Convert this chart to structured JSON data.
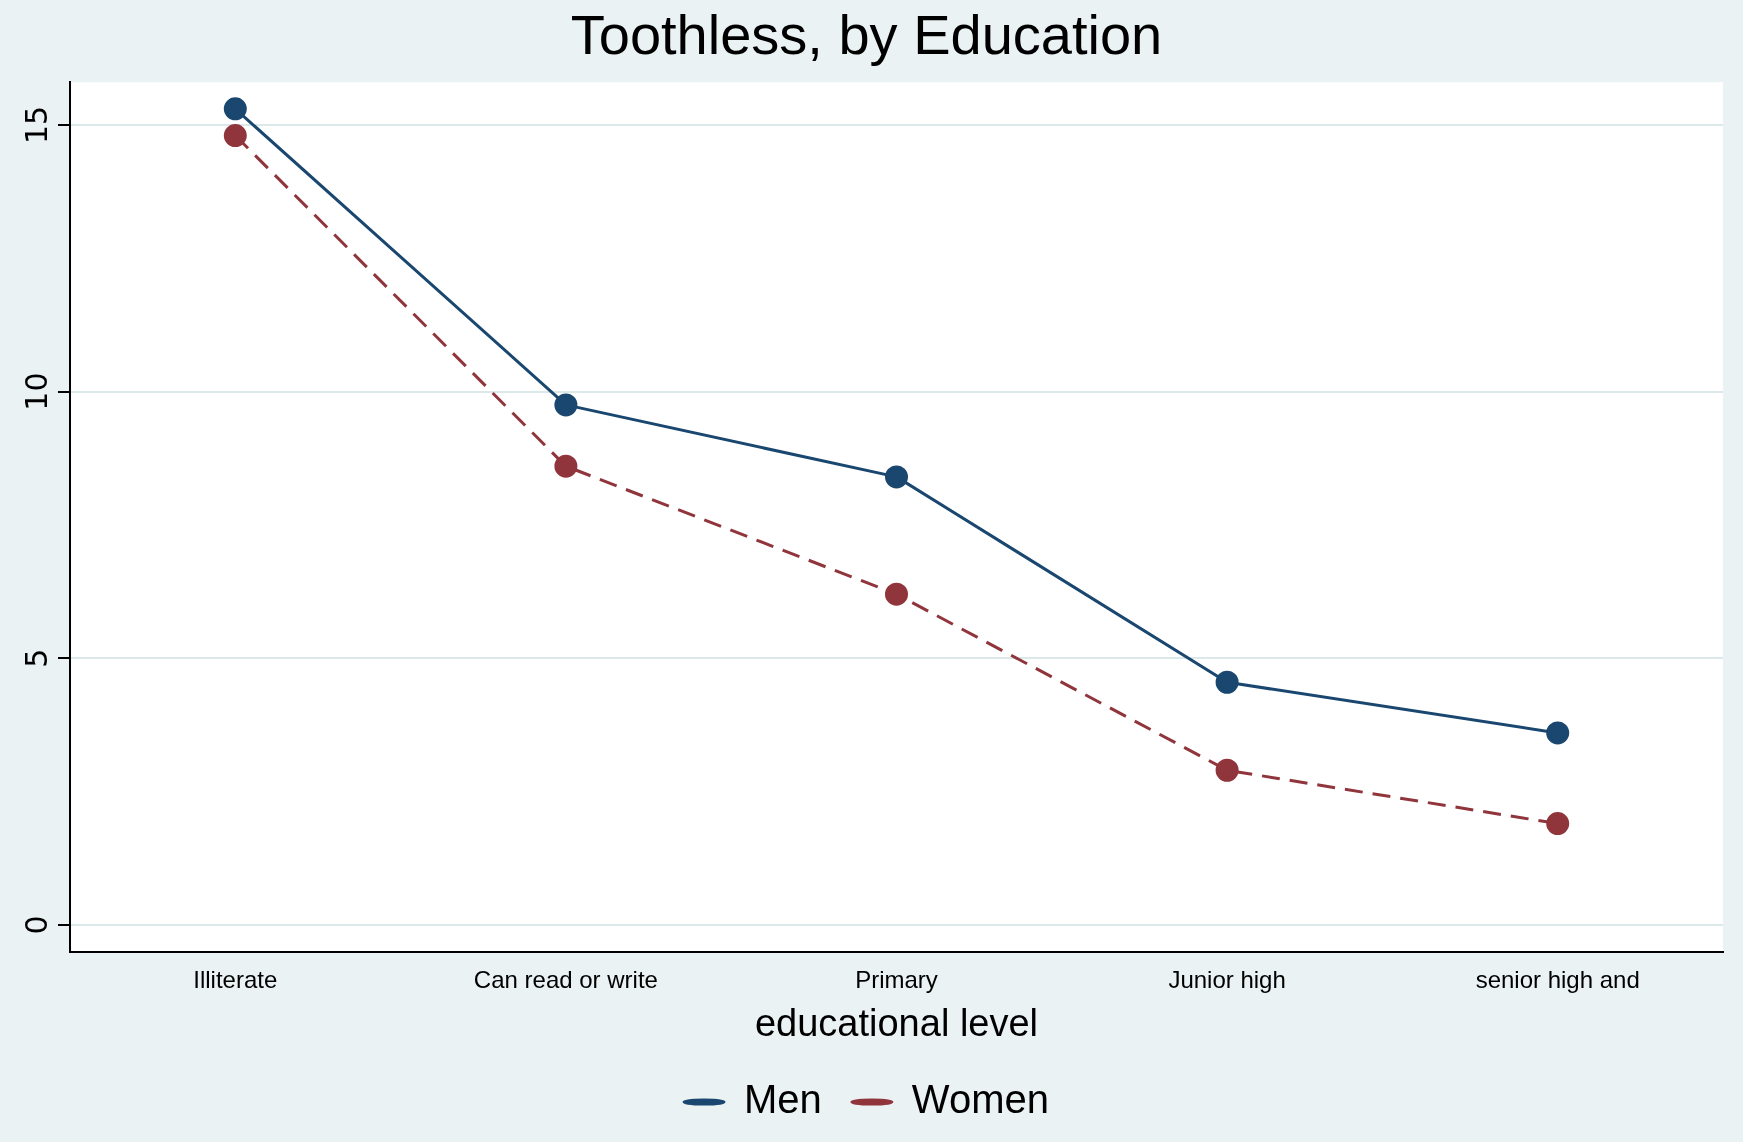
{
  "chart_data": {
    "type": "line",
    "title": "Toothless, by Education",
    "xlabel": "educational level",
    "categories": [
      "Illiterate",
      "Can read or write",
      "Primary",
      "Junior high",
      "senior high and"
    ],
    "series": [
      {
        "name": "Men",
        "color": "#1a476f",
        "values": [
          15.3,
          9.75,
          8.4,
          4.55,
          3.6
        ],
        "line_style": "solid"
      },
      {
        "name": "Women",
        "color": "#90353b",
        "values": [
          14.8,
          8.6,
          6.2,
          2.9,
          1.9
        ],
        "line_style": "dashed"
      }
    ],
    "ylim": [
      -0.5,
      15.8
    ],
    "yticks": [
      0,
      5,
      10,
      15
    ],
    "grid": "y",
    "legend": "bottom",
    "marker": "circle"
  }
}
